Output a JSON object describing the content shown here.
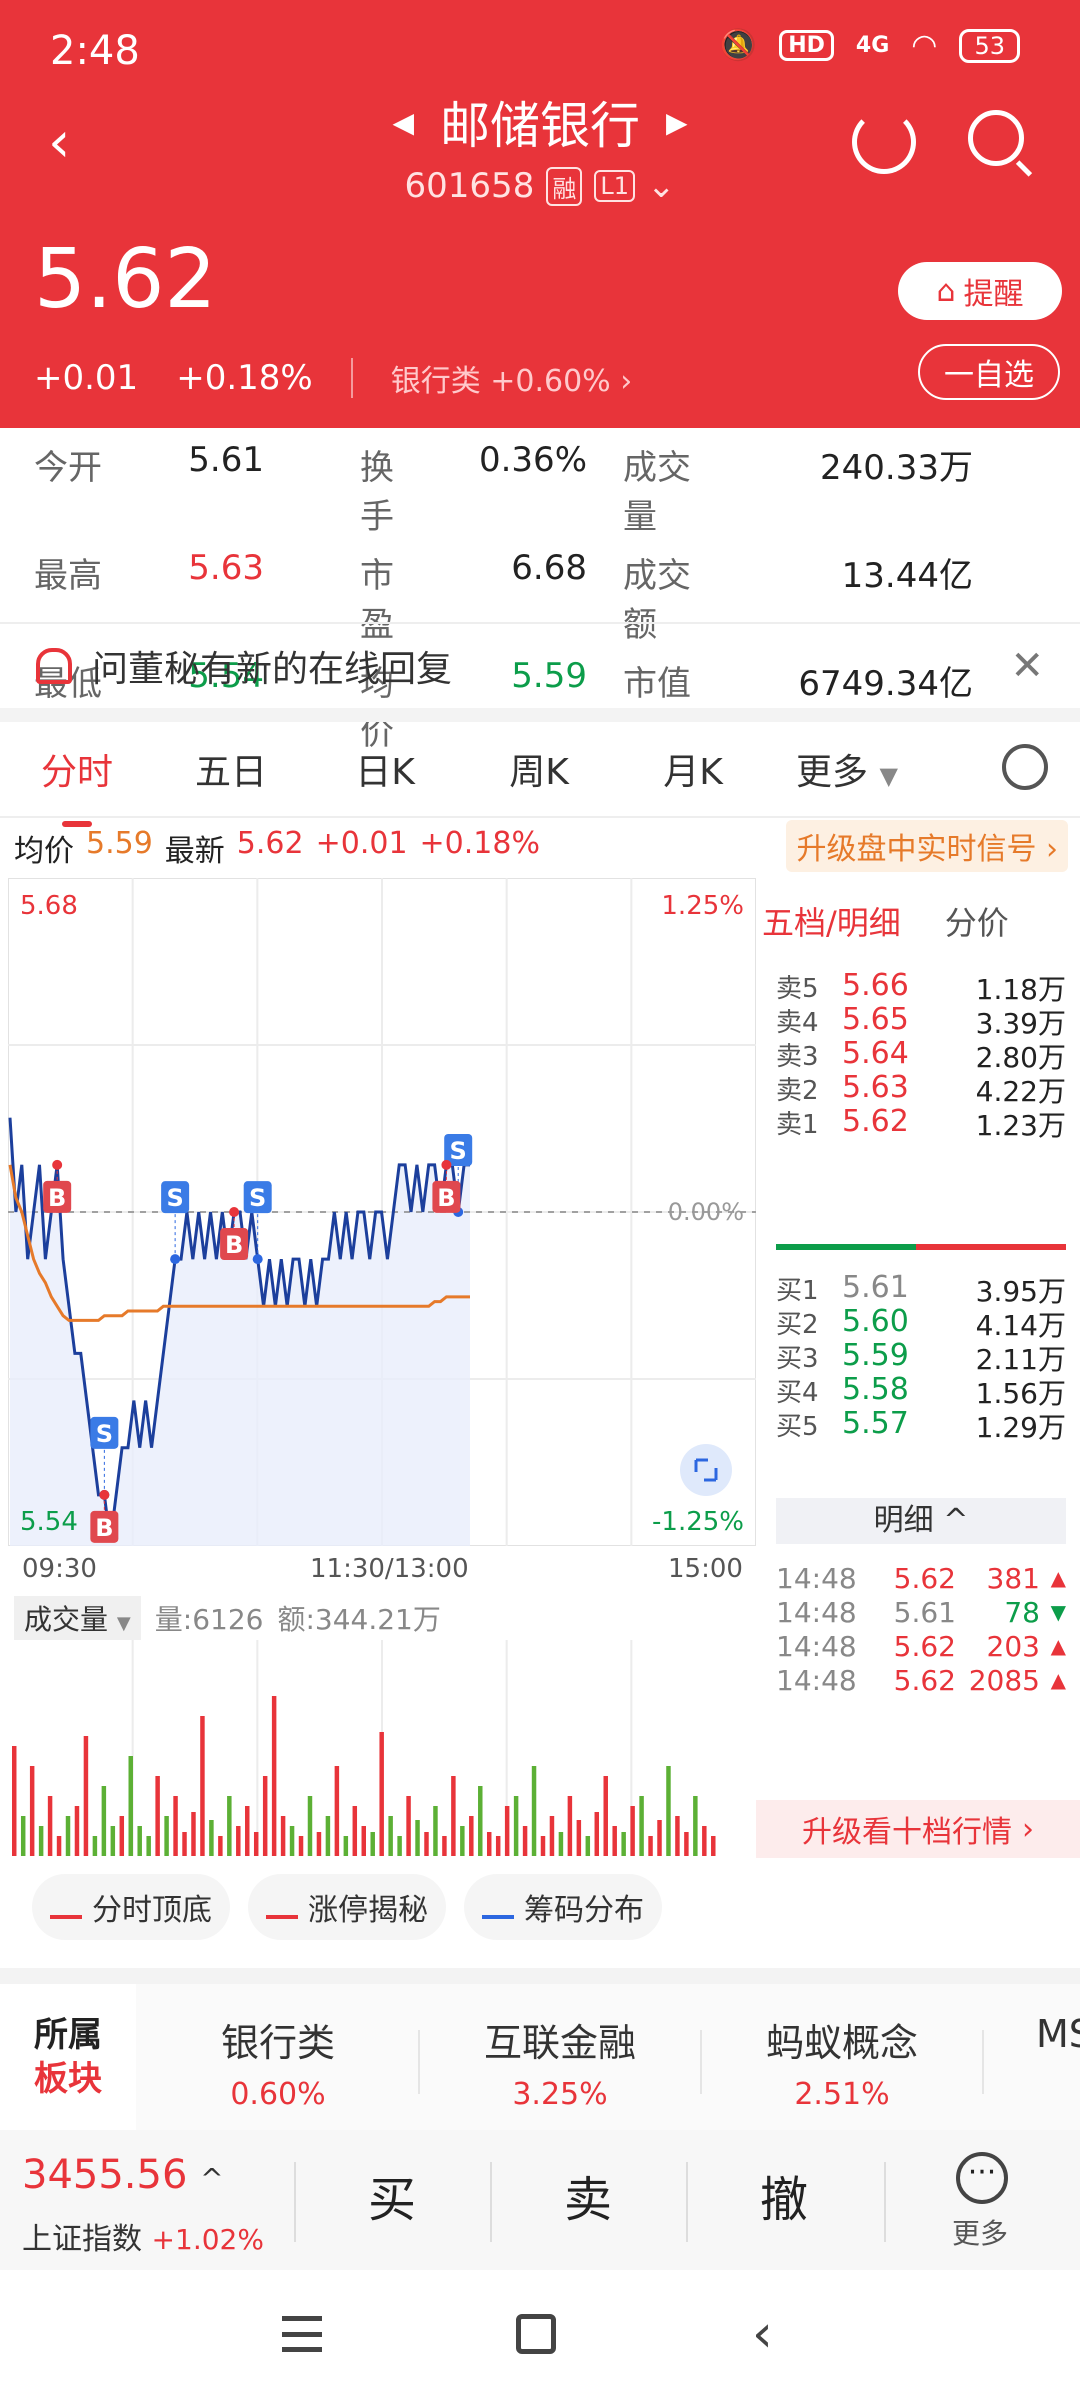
{
  "status_bar": {
    "time": "2:48",
    "hd": "HD",
    "net": "4G",
    "battery": "53"
  },
  "header": {
    "stock_name": "邮储银行",
    "stock_code": "601658",
    "tag_margin": "融",
    "tag_level": "L1",
    "price": "5.62",
    "change": "+0.01",
    "change_pct": "+0.18%",
    "sector_name": "银行类",
    "sector_change": "+0.60%",
    "alert_label": "提醒",
    "watch_label": "一自选"
  },
  "quote": {
    "open_label": "今开",
    "open": "5.61",
    "turnover_label": "换手",
    "turnover": "0.36%",
    "volume_label": "成交量",
    "volume": "240.33万",
    "high_label": "最高",
    "high": "5.63",
    "pe_label": "市盈",
    "pe": "6.68",
    "amount_label": "成交额",
    "amount": "13.44亿",
    "low_label": "最低",
    "low": "5.54",
    "avg_label": "均价",
    "avg": "5.59",
    "mcap_label": "市值",
    "mcap": "6749.34亿"
  },
  "banner": {
    "text": "问董秘有新的在线回复"
  },
  "tabs": [
    "分时",
    "五日",
    "日K",
    "周K",
    "月K"
  ],
  "tab_more": "更多",
  "chart_header": {
    "avg_label": "均价",
    "avg": "5.59",
    "latest_label": "最新",
    "latest": "5.62",
    "change": "+0.01",
    "change_pct": "+0.18%",
    "upgrade_signal": "升级盘中实时信号 ›"
  },
  "chart_data": {
    "type": "line",
    "y_top_label": "5.68",
    "y_bottom_label": "5.54",
    "pct_top_label": "1.25%",
    "pct_bottom_label": "-1.25%",
    "zero_pct_label": "0.00%",
    "ylim": [
      5.54,
      5.68
    ],
    "prev_close": 5.61,
    "x_ticks": [
      "09:30",
      "11:30/13:00",
      "15:00"
    ],
    "series": [
      {
        "values": [
          5.63,
          5.61,
          5.62,
          5.6,
          5.61,
          5.62,
          5.6,
          5.61,
          5.62,
          5.6,
          5.59,
          5.58,
          5.58,
          5.57,
          5.56,
          5.55,
          5.55,
          5.54,
          5.55,
          5.56,
          5.56,
          5.57,
          5.56,
          5.57,
          5.56,
          5.57,
          5.58,
          5.59,
          5.6,
          5.6,
          5.61,
          5.6,
          5.61,
          5.6,
          5.61,
          5.6,
          5.61,
          5.6,
          5.61,
          5.61,
          5.6,
          5.61,
          5.6,
          5.59,
          5.6,
          5.59,
          5.6,
          5.59,
          5.6,
          5.6,
          5.59,
          5.6,
          5.59,
          5.6,
          5.6,
          5.61,
          5.6,
          5.61,
          5.6,
          5.61,
          5.61,
          5.6,
          5.61,
          5.61,
          5.6,
          5.61,
          5.62,
          5.62,
          5.61,
          5.62,
          5.61,
          5.62,
          5.62,
          5.61,
          5.62,
          5.62,
          5.61,
          5.62,
          5.62
        ]
      },
      {
        "values": [
          5.62,
          5.613,
          5.61,
          5.605,
          5.6,
          5.597,
          5.595,
          5.592,
          5.59,
          5.588,
          5.587,
          5.587,
          5.587,
          5.587,
          5.587,
          5.587,
          5.588,
          5.588,
          5.588,
          5.588,
          5.589,
          5.589,
          5.589,
          5.589,
          5.589,
          5.589,
          5.59,
          5.59,
          5.59,
          5.59,
          5.59,
          5.59,
          5.59,
          5.59,
          5.59,
          5.59,
          5.59,
          5.59,
          5.59,
          5.59,
          5.59,
          5.59,
          5.59,
          5.59,
          5.59,
          5.59,
          5.59,
          5.59,
          5.59,
          5.59,
          5.59,
          5.59,
          5.59,
          5.59,
          5.59,
          5.59,
          5.59,
          5.59,
          5.59,
          5.59,
          5.59,
          5.59,
          5.59,
          5.59,
          5.59,
          5.59,
          5.59,
          5.59,
          5.59,
          5.59,
          5.59,
          5.59,
          5.591,
          5.591,
          5.592,
          5.592,
          5.592,
          5.592,
          5.592
        ]
      }
    ],
    "markers": [
      {
        "label": "S",
        "index": 16
      },
      {
        "label": "S",
        "index": 28
      },
      {
        "label": "S",
        "index": 42
      },
      {
        "label": "S",
        "index": 76
      },
      {
        "label": "B",
        "index": 8
      },
      {
        "label": "B",
        "index": 16
      },
      {
        "label": "B",
        "index": 38
      },
      {
        "label": "B",
        "index": 74
      }
    ]
  },
  "volume": {
    "selector": "成交量",
    "vol_text": "量:6126",
    "amt_text": "额:344.21万",
    "bars": [
      0.55,
      0.2,
      0.45,
      0.15,
      0.3,
      0.1,
      0.2,
      0.25,
      0.6,
      0.1,
      0.35,
      0.15,
      0.2,
      0.5,
      0.15,
      0.1,
      0.4,
      0.2,
      0.3,
      0.12,
      0.22,
      0.7,
      0.18,
      0.1,
      0.3,
      0.15,
      0.25,
      0.12,
      0.4,
      0.8,
      0.2,
      0.15,
      0.1,
      0.3,
      0.12,
      0.2,
      0.45,
      0.1,
      0.25,
      0.15,
      0.12,
      0.62,
      0.2,
      0.1,
      0.3,
      0.18,
      0.12,
      0.25,
      0.1,
      0.4,
      0.15,
      0.2,
      0.35,
      0.12,
      0.1,
      0.25,
      0.3,
      0.15,
      0.45,
      0.1,
      0.2,
      0.12,
      0.3,
      0.18,
      0.1,
      0.22,
      0.4,
      0.15,
      0.12,
      0.25,
      0.3,
      0.1,
      0.18,
      0.45,
      0.2,
      0.12,
      0.3,
      0.15,
      0.1
    ]
  },
  "order_book": {
    "tab_active": "五档/明细",
    "tab_other": "分价",
    "asks": [
      {
        "name": "卖5",
        "price": "5.66",
        "vol": "1.18万"
      },
      {
        "name": "卖4",
        "price": "5.65",
        "vol": "3.39万"
      },
      {
        "name": "卖3",
        "price": "5.64",
        "vol": "2.80万"
      },
      {
        "name": "卖2",
        "price": "5.63",
        "vol": "4.22万"
      },
      {
        "name": "卖1",
        "price": "5.62",
        "vol": "1.23万"
      }
    ],
    "bids": [
      {
        "name": "买1",
        "price": "5.61",
        "vol": "3.95万"
      },
      {
        "name": "买2",
        "price": "5.60",
        "vol": "4.14万"
      },
      {
        "name": "买3",
        "price": "5.59",
        "vol": "2.11万"
      },
      {
        "name": "买4",
        "price": "5.58",
        "vol": "1.56万"
      },
      {
        "name": "买5",
        "price": "5.57",
        "vol": "1.29万"
      }
    ],
    "detail_label": "明细 ^",
    "ticks": [
      {
        "time": "14:48",
        "price": "5.62",
        "qty": "381",
        "dir": "up"
      },
      {
        "time": "14:48",
        "price": "5.61",
        "qty": "78",
        "dir": "down"
      },
      {
        "time": "14:48",
        "price": "5.62",
        "qty": "203",
        "dir": "up"
      },
      {
        "time": "14:48",
        "price": "5.62",
        "qty": "2085",
        "dir": "up"
      }
    ],
    "upgrade_ten": "升级看十档行情"
  },
  "tools": [
    "分时顶底",
    "涨停揭秘",
    "筹码分布"
  ],
  "sectors": {
    "label_top": "所属",
    "label_bottom": "板块",
    "items": [
      {
        "name": "银行类",
        "change": "0.60%"
      },
      {
        "name": "互联金融",
        "change": "3.25%"
      },
      {
        "name": "蚂蚁概念",
        "change": "2.51%"
      }
    ],
    "overflow": "MS"
  },
  "trade_bar": {
    "index_value": "3455.56",
    "index_name": "上证指数",
    "index_change": "+1.02%",
    "buy": "买",
    "sell": "卖",
    "cancel": "撤",
    "more": "更多"
  },
  "colors": {
    "red": "#e8343a",
    "green": "#0c9d4a",
    "avg_line": "#e67a2a",
    "price_line": "#1c3f9c"
  }
}
